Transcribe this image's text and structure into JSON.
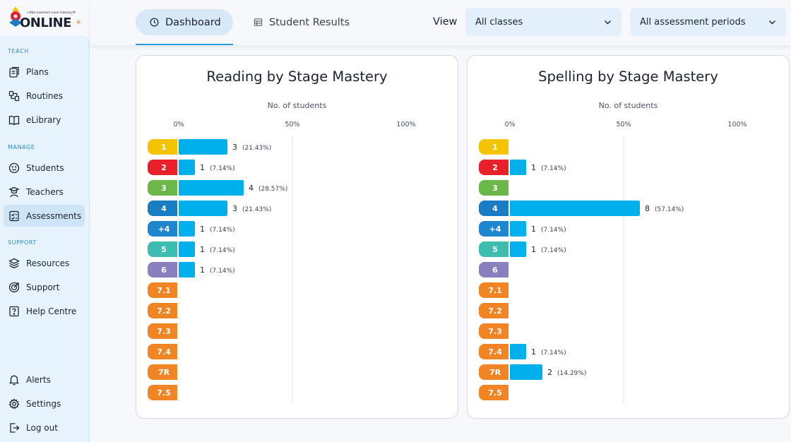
{
  "app": {
    "logo_small_text": "Little Learners Love Literacy®",
    "logo_text": "ONLINE"
  },
  "sidebar": {
    "sections": {
      "teach": "TEACH",
      "manage": "MANAGE",
      "support": "SUPPORT"
    },
    "items": [
      {
        "label": "Plans",
        "icon": "plans-icon"
      },
      {
        "label": "Routines",
        "icon": "routines-icon"
      },
      {
        "label": "eLibrary",
        "icon": "book-icon"
      },
      {
        "label": "Students",
        "icon": "smiley-icon"
      },
      {
        "label": "Teachers",
        "icon": "teacher-icon"
      },
      {
        "label": "Assessments",
        "icon": "assessment-icon",
        "active": true
      },
      {
        "label": "Resources",
        "icon": "layers-icon"
      },
      {
        "label": "Support",
        "icon": "target-icon"
      },
      {
        "label": "Help Centre",
        "icon": "help-icon"
      },
      {
        "label": "Alerts",
        "icon": "bell-icon"
      },
      {
        "label": "Settings",
        "icon": "gear-icon"
      },
      {
        "label": "Log out",
        "icon": "logout-icon"
      }
    ]
  },
  "topbar": {
    "tabs": [
      {
        "label": "Dashboard",
        "icon": "clock-icon",
        "active": true
      },
      {
        "label": "Student Results",
        "icon": "table-icon",
        "active": false
      }
    ],
    "view_label": "View",
    "class_select": "All classes",
    "period_select": "All assessment periods"
  },
  "colors": {
    "bar": "#00b0ed",
    "stage_1": "#f5c400",
    "stage_2": "#e8202a",
    "stage_3": "#6cb74a",
    "stage_4": "#1a7cc2",
    "stage_plus4": "#1d86cf",
    "stage_5": "#3dbcb0",
    "stage_6": "#8a7fbf",
    "stage_7": "#f18423"
  },
  "chart_data": [
    {
      "type": "bar",
      "title": "Reading by Stage Mastery",
      "xlabel": "No. of students",
      "x_ticks": [
        "0%",
        "50%",
        "100%"
      ],
      "xlim": [
        0,
        100
      ],
      "categories": [
        "1",
        "2",
        "3",
        "4",
        "+4",
        "5",
        "6",
        "7.1",
        "7.2",
        "7.3",
        "7.4",
        "7R",
        "7.5"
      ],
      "values": [
        3,
        1,
        4,
        3,
        1,
        1,
        1,
        null,
        null,
        null,
        null,
        null,
        null
      ],
      "percent_labels": [
        "(21.43%)",
        "(7.14%)",
        "(28.57%)",
        "(21.43%)",
        "(7.14%)",
        "(7.14%)",
        "(7.14%)",
        null,
        null,
        null,
        null,
        null,
        null
      ],
      "percents": [
        21.43,
        7.14,
        28.57,
        21.43,
        7.14,
        7.14,
        7.14,
        0,
        0,
        0,
        0,
        0,
        0
      ]
    },
    {
      "type": "bar",
      "title": "Spelling by Stage Mastery",
      "xlabel": "No. of students",
      "x_ticks": [
        "0%",
        "50%",
        "100%"
      ],
      "xlim": [
        0,
        100
      ],
      "categories": [
        "1",
        "2",
        "3",
        "4",
        "+4",
        "5",
        "6",
        "7.1",
        "7.2",
        "7.3",
        "7.4",
        "7R",
        "7.5"
      ],
      "values": [
        null,
        1,
        null,
        8,
        1,
        1,
        null,
        null,
        null,
        null,
        1,
        2,
        null
      ],
      "percent_labels": [
        null,
        "(7.14%)",
        null,
        "(57.14%)",
        "(7.14%)",
        "(7.14%)",
        null,
        null,
        null,
        null,
        "(7.14%)",
        "(14.29%)",
        null
      ],
      "percents": [
        0,
        7.14,
        0,
        57.14,
        7.14,
        7.14,
        0,
        0,
        0,
        0,
        7.14,
        14.29,
        0
      ]
    }
  ]
}
